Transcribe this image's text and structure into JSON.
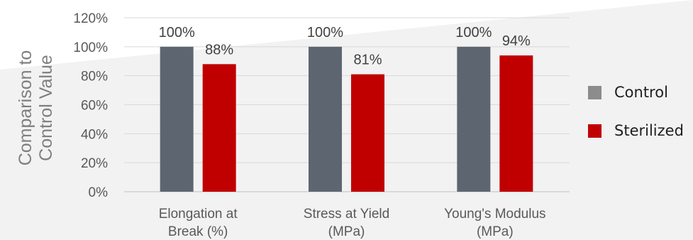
{
  "chart_data": {
    "type": "bar",
    "title": "",
    "ylabel": "Comparison to Control Value",
    "ylabel_lines": [
      "Comparison to",
      "Control Value"
    ],
    "xlabel": "",
    "ylim": [
      0,
      120
    ],
    "yticks": [
      0,
      20,
      40,
      60,
      80,
      100,
      120
    ],
    "ytick_labels": [
      "0%",
      "20%",
      "40%",
      "60%",
      "80%",
      "100%",
      "120%"
    ],
    "categories": [
      "Elongation at Break (%)",
      "Stress at Yield (MPa)",
      "Young's Modulus (MPa)"
    ],
    "category_lines": [
      [
        "Elongation at",
        "Break (%)"
      ],
      [
        "Stress at Yield",
        "(MPa)"
      ],
      [
        "Young's Modulus",
        "(MPa)"
      ]
    ],
    "series": [
      {
        "name": "Control",
        "values": [
          100,
          100,
          100
        ],
        "labels": [
          "100%",
          "100%",
          "100%"
        ],
        "color": "#5d6670"
      },
      {
        "name": "Sterilized",
        "values": [
          88,
          81,
          94
        ],
        "labels": [
          "88%",
          "81%",
          "94%"
        ],
        "color": "#c00000"
      }
    ],
    "grid": true,
    "legend_position": "right"
  }
}
